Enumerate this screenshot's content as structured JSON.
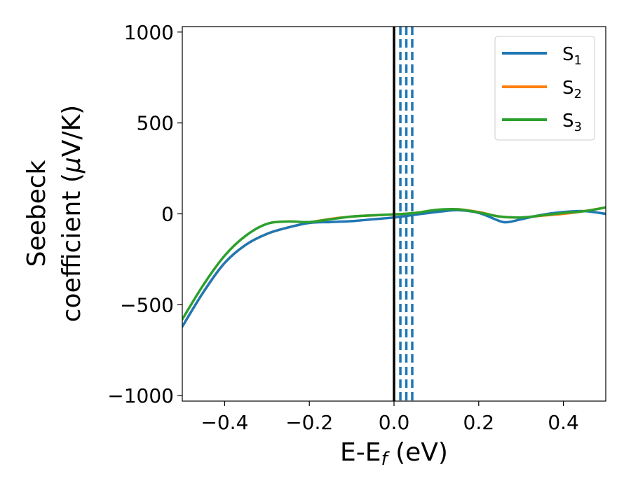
{
  "chart_data": {
    "type": "line",
    "title": "",
    "xlabel_main": "E-E",
    "xlabel_sub": "f",
    "xlabel_unit": " (eV)",
    "ylabel_line1": "Seebeck",
    "ylabel_line2_text": "coefficient  (",
    "ylabel_line2_mu": "μ",
    "ylabel_line2_unit": "V/K)",
    "xlim": [
      -0.5,
      0.5
    ],
    "ylim": [
      -1030,
      1030
    ],
    "xticks": [
      -0.4,
      -0.2,
      0.0,
      0.2,
      0.4
    ],
    "xtick_labels": [
      "−0.4",
      "−0.2",
      "0.0",
      "0.2",
      "0.4"
    ],
    "yticks": [
      1000,
      500,
      0,
      -500,
      -1000
    ],
    "ytick_labels": [
      "1000",
      "500",
      "0",
      "−500",
      "−1000"
    ],
    "grid": false,
    "legend_position": "top-right",
    "fermi_line_x": 0.0,
    "dashed_lines_x": [
      0.015,
      0.029,
      0.043
    ],
    "colors": {
      "S1": "#1f77b4",
      "S2": "#ff7f0e",
      "S3": "#2ca02c",
      "fermi": "#000000",
      "dashed": "#1f77b4"
    },
    "series": [
      {
        "name": "S1",
        "sym": "S",
        "sub": "1",
        "color": "#1f77b4",
        "x": [
          -0.5,
          -0.45,
          -0.4,
          -0.35,
          -0.3,
          -0.25,
          -0.2,
          -0.15,
          -0.1,
          -0.05,
          0.0,
          0.05,
          0.1,
          0.15,
          0.2,
          0.25,
          0.27,
          0.3,
          0.35,
          0.4,
          0.45,
          0.5
        ],
        "y": [
          -620,
          -430,
          -270,
          -170,
          -110,
          -75,
          -50,
          -45,
          -40,
          -30,
          -20,
          -5,
          10,
          20,
          5,
          -40,
          -45,
          -30,
          -5,
          10,
          15,
          0
        ]
      },
      {
        "name": "S2",
        "sym": "S",
        "sub": "2",
        "color": "#ff7f0e",
        "x": [
          -0.5,
          -0.45,
          -0.4,
          -0.35,
          -0.3,
          -0.25,
          -0.2,
          -0.15,
          -0.1,
          -0.05,
          0.0,
          0.05,
          0.1,
          0.15,
          0.2,
          0.25,
          0.3,
          0.35,
          0.4,
          0.45,
          0.5
        ],
        "y": [
          -620,
          -430,
          -270,
          -170,
          -110,
          -75,
          -48,
          -28,
          -15,
          -8,
          -3,
          5,
          20,
          25,
          10,
          -15,
          -20,
          -10,
          0,
          15,
          35
        ]
      },
      {
        "name": "S3",
        "sym": "S",
        "sub": "3",
        "color": "#2ca02c",
        "x": [
          -0.5,
          -0.45,
          -0.4,
          -0.35,
          -0.3,
          -0.25,
          -0.2,
          -0.15,
          -0.1,
          -0.05,
          0.0,
          0.05,
          0.1,
          0.15,
          0.2,
          0.25,
          0.3,
          0.35,
          0.4,
          0.45,
          0.5
        ],
        "y": [
          -580,
          -390,
          -230,
          -120,
          -55,
          -42,
          -45,
          -30,
          -15,
          -8,
          -3,
          5,
          22,
          25,
          8,
          -15,
          -20,
          -8,
          5,
          15,
          35
        ]
      }
    ]
  }
}
